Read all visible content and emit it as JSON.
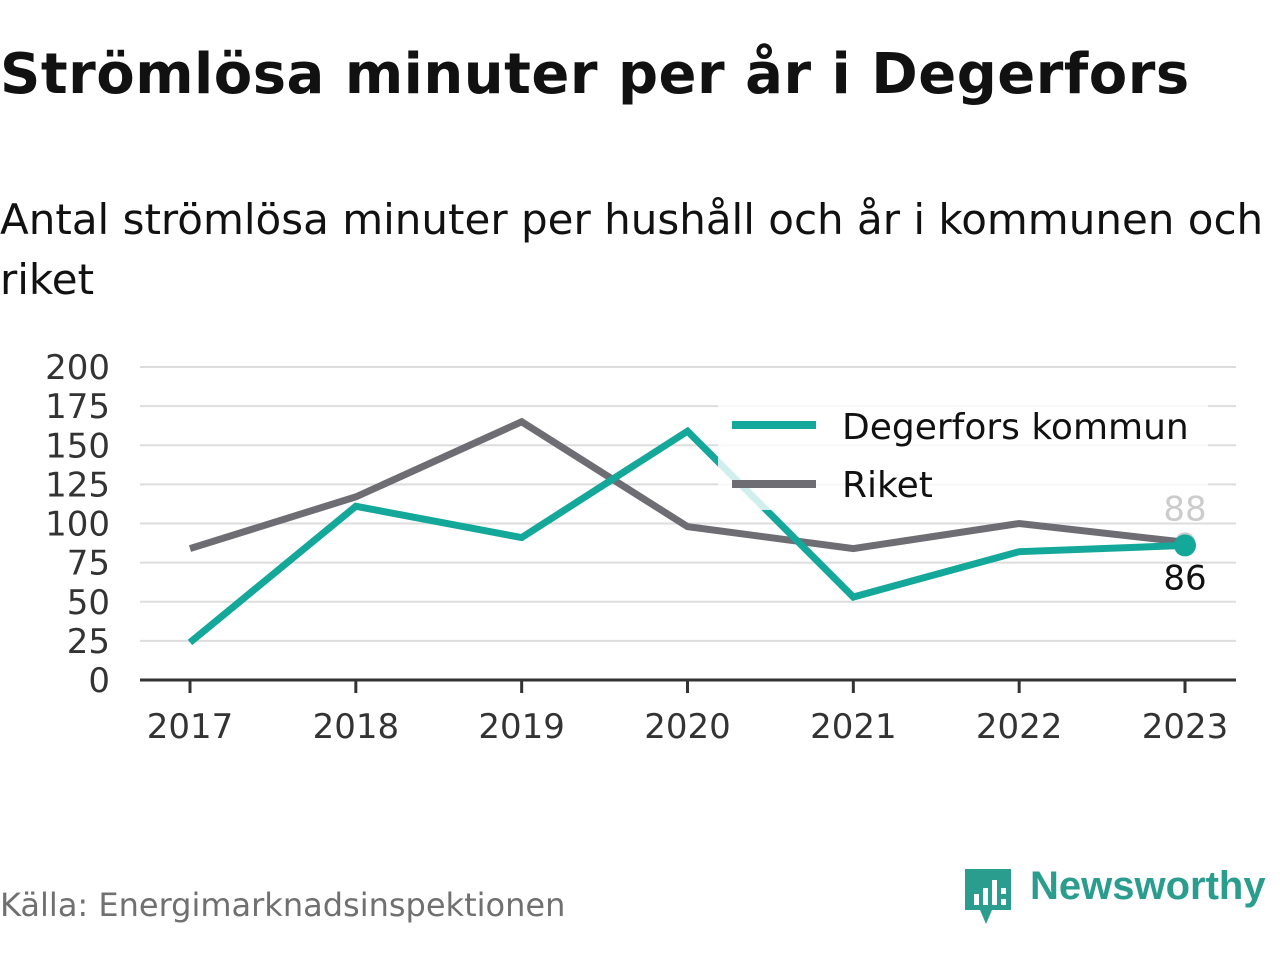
{
  "title": "Strömlösa minuter per år i Degerfors",
  "subtitle": "Antal strömlösa minuter per hushåll och år i kommunen och riket",
  "source": "Källa: Energimarknadsinspektionen",
  "logo_text": "Newsworthy",
  "colors": {
    "degerfors": "#14a89a",
    "riket": "#6e6d74",
    "grid": "#dddddd",
    "axis": "#333333",
    "brand": "#2a9d8f"
  },
  "chart_data": {
    "type": "line",
    "categories": [
      "2017",
      "2018",
      "2019",
      "2020",
      "2021",
      "2022",
      "2023"
    ],
    "ylim": [
      0,
      200
    ],
    "yticks": [
      "0",
      "25",
      "50",
      "75",
      "100",
      "125",
      "150",
      "175",
      "200"
    ],
    "grid": true,
    "legend_position": "top-right",
    "series": [
      {
        "name": "Degerfors kommun",
        "values": [
          24,
          111,
          91,
          159,
          53,
          82,
          86
        ],
        "end_label": "86"
      },
      {
        "name": "Riket",
        "values": [
          84,
          117,
          165,
          98,
          84,
          100,
          88
        ],
        "end_label": "88"
      }
    ]
  }
}
